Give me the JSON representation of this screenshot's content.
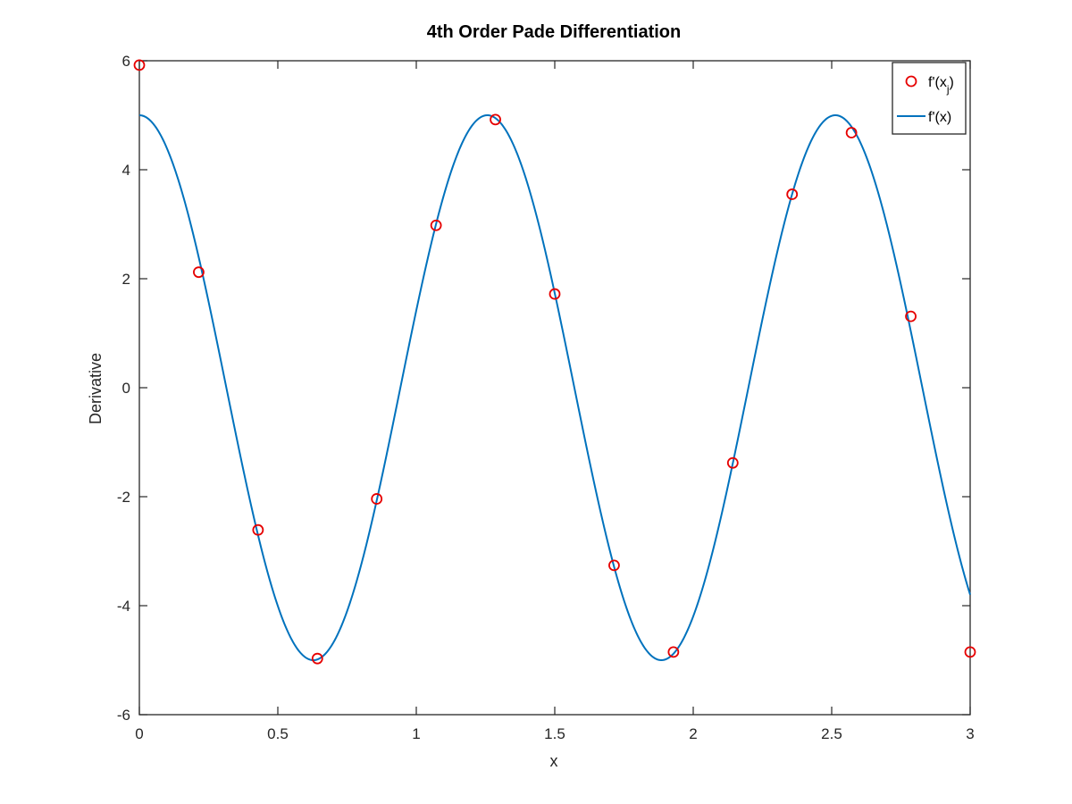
{
  "chart_data": {
    "type": "line",
    "title": "4th Order Pade Differentiation",
    "xlabel": "x",
    "ylabel": "Derivative",
    "xlim": [
      0,
      3
    ],
    "ylim": [
      -6,
      6
    ],
    "xticks": [
      0,
      0.5,
      1,
      1.5,
      2,
      2.5,
      3
    ],
    "xtick_labels": [
      "0",
      "0.5",
      "1",
      "1.5",
      "2",
      "2.5",
      "3"
    ],
    "yticks": [
      -6,
      -4,
      -2,
      0,
      2,
      4,
      6
    ],
    "ytick_labels": [
      "-6",
      "-4",
      "-2",
      "0",
      "2",
      "4",
      "6"
    ],
    "grid": false,
    "legend_position": "top-right",
    "series": [
      {
        "name": "f'(x_j)",
        "legend_main": "f'(x",
        "legend_sub": "j",
        "legend_close": ")",
        "style": "markers",
        "marker": "circle",
        "color": "#e60000",
        "x": [
          0,
          0.2143,
          0.4286,
          0.6429,
          0.8571,
          1.0714,
          1.2857,
          1.5,
          1.7143,
          1.9286,
          2.1429,
          2.3571,
          2.5714,
          2.7857,
          3.0
        ],
        "y": [
          5.92,
          2.12,
          -2.61,
          -4.97,
          -2.04,
          2.98,
          4.92,
          1.72,
          -3.26,
          -4.85,
          -1.38,
          3.55,
          4.68,
          1.31,
          -4.85
        ]
      },
      {
        "name": "f'(x)",
        "style": "line",
        "color": "#0072bd",
        "function": "5*cos(5x)",
        "x_range": [
          0,
          3
        ]
      }
    ]
  }
}
